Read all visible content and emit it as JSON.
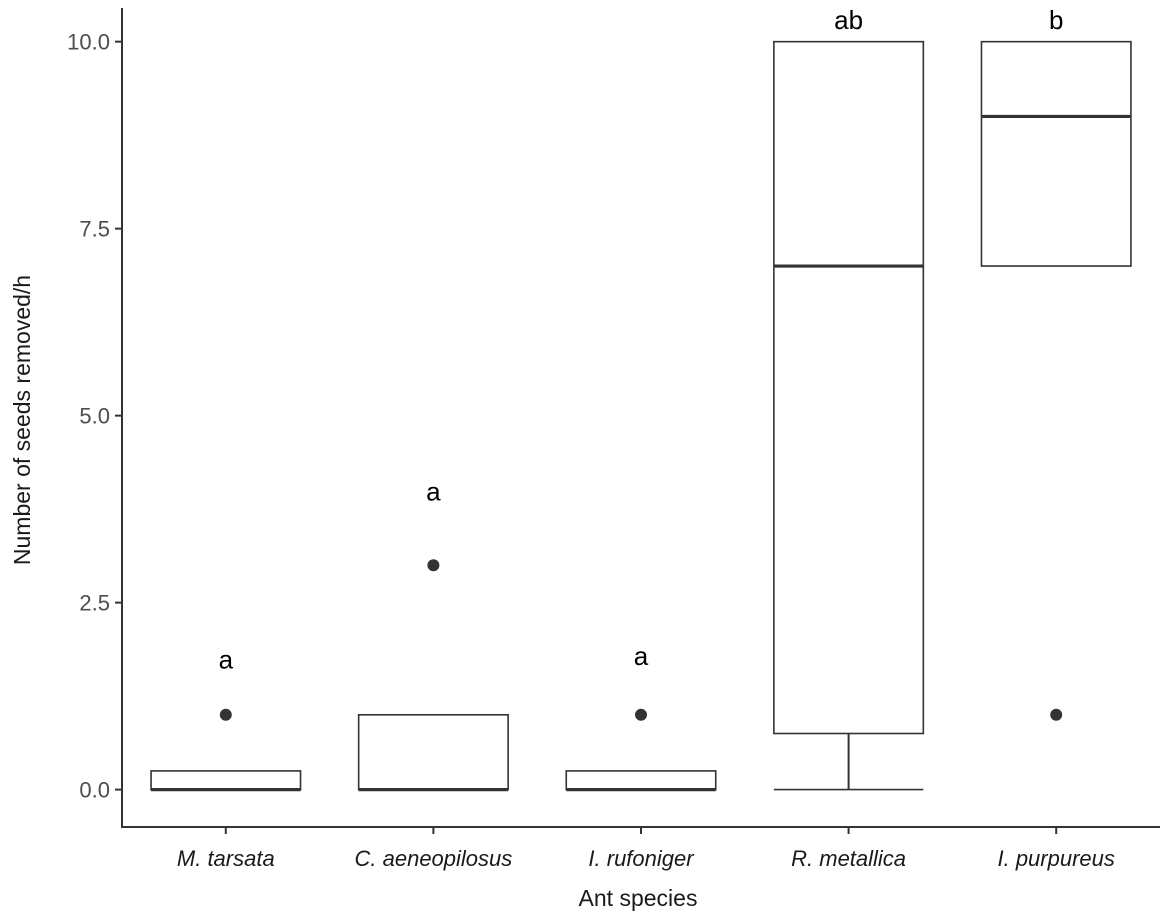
{
  "chart_data": {
    "type": "boxplot",
    "xlabel": "Ant species",
    "ylabel": "Number of seeds removed/h",
    "ylim": [
      -0.5,
      10.45
    ],
    "yticks": [
      0.0,
      2.5,
      5.0,
      7.5,
      10.0
    ],
    "ytick_labels": [
      "0.0",
      "2.5",
      "5.0",
      "7.5",
      "10.0"
    ],
    "grid": false,
    "categories": [
      "M. tarsata",
      "C. aeneopilosus",
      "I. rufoniger",
      "R. metallica",
      "I. purpureus"
    ],
    "boxes": [
      {
        "category": "M. tarsata",
        "whisker_low": 0,
        "q1": 0,
        "median": 0,
        "q3": 0.25,
        "whisker_high": 0.25,
        "outliers": [
          1
        ],
        "letter": "a",
        "letter_y": 1.75
      },
      {
        "category": "C. aeneopilosus",
        "whisker_low": 0,
        "q1": 0,
        "median": 0,
        "q3": 1,
        "whisker_high": 1,
        "outliers": [
          3
        ],
        "letter": "a",
        "letter_y": 4.0
      },
      {
        "category": "I. rufoniger",
        "whisker_low": 0,
        "q1": 0,
        "median": 0,
        "q3": 0.25,
        "whisker_high": 0.25,
        "outliers": [
          1
        ],
        "letter": "a",
        "letter_y": 1.8
      },
      {
        "category": "R. metallica",
        "whisker_low": 0,
        "q1": 0.75,
        "median": 7,
        "q3": 10,
        "whisker_high": 10,
        "outliers": [],
        "letter": "ab",
        "letter_y": 10.3
      },
      {
        "category": "I. purpureus",
        "whisker_low": 7,
        "q1": 7,
        "median": 9,
        "q3": 10,
        "whisker_high": 10,
        "outliers": [
          1
        ],
        "letter": "b",
        "letter_y": 10.3
      }
    ],
    "colors": {
      "box_stroke": "#333333",
      "box_fill": "#ffffff",
      "outlier": "#333333",
      "axis": "#333333"
    }
  }
}
